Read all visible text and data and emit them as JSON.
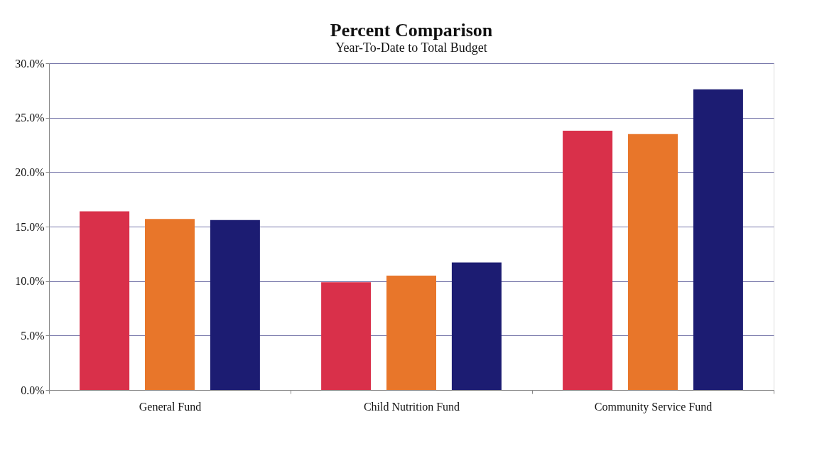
{
  "chart_data": {
    "type": "bar",
    "title": "Percent Comparison",
    "subtitle": "Year-To-Date to Total Budget",
    "categories": [
      "General Fund",
      "Child Nutrition Fund",
      "Community Service Fund"
    ],
    "series": [
      {
        "color": "#d9304a",
        "values": [
          16.4,
          9.9,
          23.8
        ]
      },
      {
        "color": "#e8762a",
        "values": [
          15.7,
          10.5,
          23.5
        ]
      },
      {
        "color": "#1c1c72",
        "values": [
          15.6,
          11.7,
          27.6
        ]
      }
    ],
    "ylim": [
      0,
      30
    ],
    "yticks": [
      {
        "value": 0,
        "label": "0.0%"
      },
      {
        "value": 5,
        "label": "5.0%"
      },
      {
        "value": 10,
        "label": "10.0%"
      },
      {
        "value": 15,
        "label": "15.0%"
      },
      {
        "value": 20,
        "label": "20.0%"
      },
      {
        "value": 25,
        "label": "25.0%"
      },
      {
        "value": 30,
        "label": "30.0%"
      }
    ],
    "grid": "y",
    "legend": false
  }
}
